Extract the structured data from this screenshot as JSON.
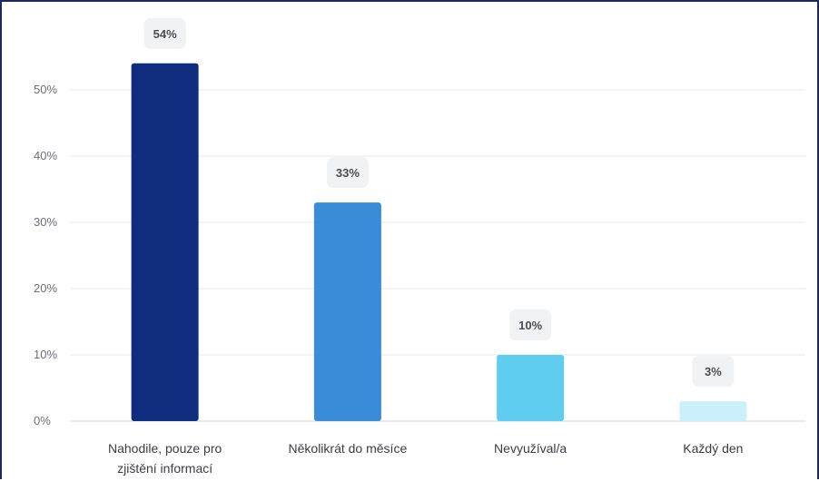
{
  "chart_data": {
    "type": "bar",
    "categories": [
      "Nahodile, pouze pro zjištění informací",
      "Několikrát do měsíce",
      "Nevyužíval/a",
      "Každý den"
    ],
    "category_lines": [
      [
        "Nahodile, pouze pro",
        "zjištění informací"
      ],
      [
        "Několikrát do měsíce"
      ],
      [
        "Nevyužíval/a"
      ],
      [
        "Každý den"
      ]
    ],
    "values": [
      54,
      33,
      10,
      3
    ],
    "data_labels": [
      "54%",
      "33%",
      "10%",
      "3%"
    ],
    "colors": [
      "#102c7e",
      "#3a8bd8",
      "#5ecdf0",
      "#ccf0fb"
    ],
    "yticks": [
      0,
      10,
      20,
      30,
      40,
      50
    ],
    "ytick_labels": [
      "0%",
      "10%",
      "20%",
      "30%",
      "40%",
      "50%"
    ],
    "ylim": [
      0,
      60
    ],
    "grid": true,
    "legend": "none",
    "label_box_color": "#f1f2f4",
    "gridline_color": "#e6e8ec"
  }
}
